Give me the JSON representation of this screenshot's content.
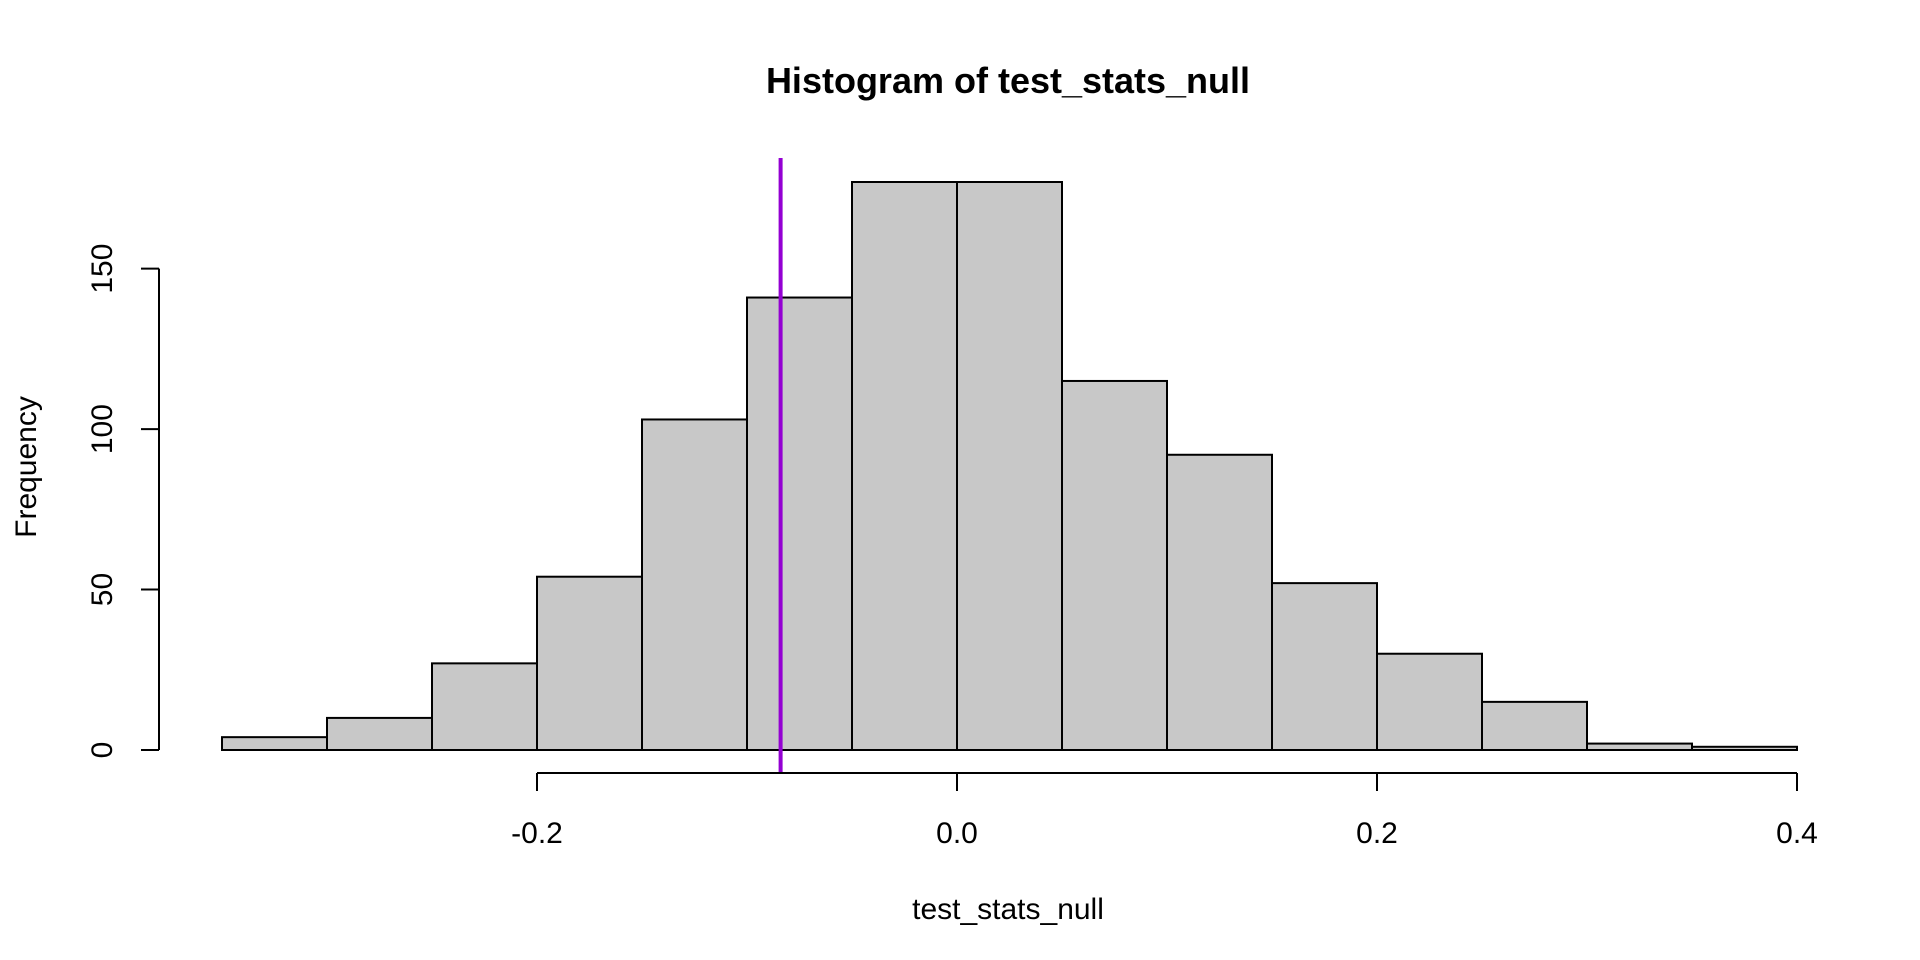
{
  "chart_data": {
    "type": "bar",
    "title": "Histogram of test_stats_null",
    "xlabel": "test_stats_null",
    "ylabel": "Frequency",
    "bin_edges": [
      -0.35,
      -0.3,
      -0.25,
      -0.2,
      -0.15,
      -0.1,
      -0.05,
      0.0,
      0.05,
      0.1,
      0.15,
      0.2,
      0.25,
      0.3,
      0.35,
      0.4
    ],
    "values": [
      4,
      10,
      27,
      54,
      103,
      141,
      177,
      177,
      115,
      92,
      52,
      30,
      15,
      2,
      1
    ],
    "xlim": [
      -0.35,
      0.4
    ],
    "ylim": [
      0,
      177
    ],
    "x_ticks": [
      -0.2,
      0.0,
      0.2,
      0.4
    ],
    "x_tick_labels": [
      "-0.2",
      "0.0",
      "0.2",
      "0.4"
    ],
    "y_ticks": [
      0,
      50,
      100,
      150
    ],
    "y_tick_labels": [
      "0",
      "50",
      "100",
      "150"
    ],
    "reference_line": {
      "x": -0.084,
      "color": "#9400D3"
    },
    "bar_color": "#C8C8C8",
    "grid": false
  }
}
